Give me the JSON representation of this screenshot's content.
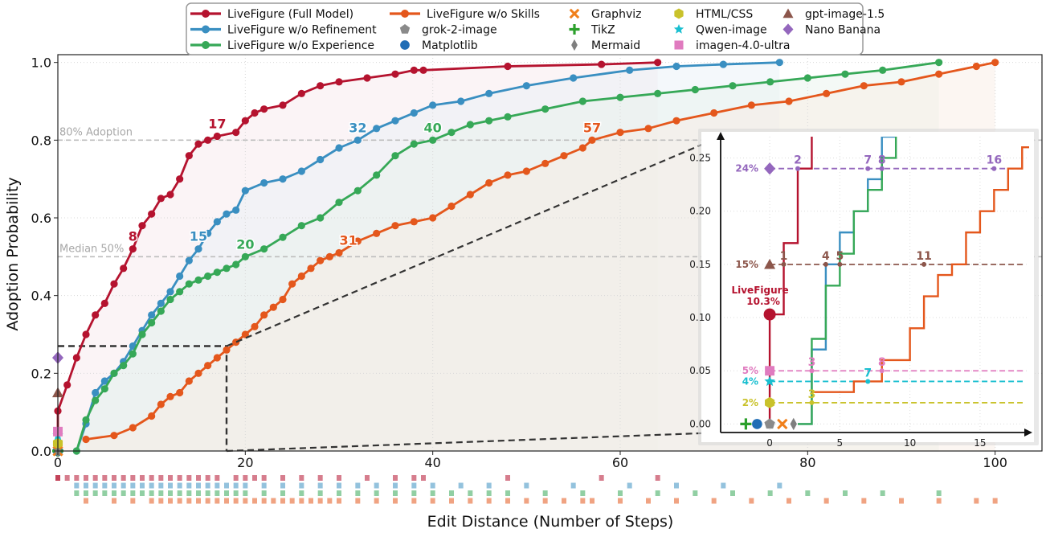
{
  "chart_data": {
    "type": "line",
    "xlabel": "Edit Distance (Number of Steps)",
    "ylabel": "Adoption Probability",
    "xlim": [
      0,
      105
    ],
    "ylim": [
      0,
      1.02
    ],
    "xticks": [
      "0",
      "20",
      "40",
      "60",
      "80",
      "100"
    ],
    "yticks": [
      "0.0",
      "0.2",
      "0.4",
      "0.6",
      "0.8",
      "1.0"
    ],
    "grid": true,
    "legend_position": "top-center",
    "reference_lines": [
      {
        "label": "80% Adoption",
        "y": 0.8
      },
      {
        "label": "Median 50%",
        "y": 0.5
      }
    ],
    "series": [
      {
        "name": "LiveFigure (Full Model)",
        "color": "#b5132f",
        "x": [
          0,
          0,
          1,
          2,
          3,
          4,
          5,
          6,
          7,
          8,
          9,
          10,
          11,
          12,
          13,
          14,
          15,
          16,
          17,
          19,
          20,
          21,
          22,
          24,
          26,
          28,
          30,
          33,
          36,
          38,
          39,
          48,
          58,
          64
        ],
        "y": [
          0.0,
          0.103,
          0.17,
          0.24,
          0.3,
          0.35,
          0.38,
          0.43,
          0.47,
          0.52,
          0.58,
          0.61,
          0.65,
          0.66,
          0.7,
          0.76,
          0.79,
          0.8,
          0.81,
          0.82,
          0.85,
          0.87,
          0.88,
          0.89,
          0.92,
          0.94,
          0.95,
          0.96,
          0.97,
          0.98,
          0.98,
          0.99,
          0.995,
          1.0
        ],
        "markers": "dense",
        "annotations": [
          {
            "x": 8,
            "text": "8"
          },
          {
            "x": 17,
            "text": "17"
          }
        ]
      },
      {
        "name": "LiveFigure w/o Refinement",
        "color": "#3a8fc1",
        "x": [
          2,
          3,
          4,
          5,
          6,
          7,
          8,
          9,
          10,
          11,
          12,
          13,
          14,
          15,
          16,
          17,
          18,
          19,
          20,
          22,
          24,
          26,
          28,
          30,
          32,
          34,
          36,
          38,
          40,
          43,
          46,
          50,
          55,
          61,
          66,
          71,
          77
        ],
        "y": [
          0.0,
          0.07,
          0.15,
          0.18,
          0.2,
          0.23,
          0.27,
          0.31,
          0.35,
          0.38,
          0.41,
          0.45,
          0.49,
          0.52,
          0.56,
          0.59,
          0.61,
          0.62,
          0.67,
          0.69,
          0.7,
          0.72,
          0.75,
          0.78,
          0.8,
          0.83,
          0.85,
          0.87,
          0.89,
          0.9,
          0.92,
          0.94,
          0.96,
          0.98,
          0.99,
          0.995,
          1.0
        ],
        "markers": "dense",
        "annotations": [
          {
            "x": 15,
            "text": "15"
          },
          {
            "x": 32,
            "text": "32"
          }
        ]
      },
      {
        "name": "LiveFigure w/o Experience",
        "color": "#36a857",
        "x": [
          2,
          3,
          4,
          5,
          6,
          7,
          8,
          9,
          10,
          11,
          12,
          13,
          14,
          15,
          16,
          17,
          18,
          19,
          20,
          22,
          24,
          26,
          28,
          30,
          32,
          34,
          36,
          38,
          40,
          42,
          44,
          46,
          48,
          52,
          56,
          60,
          64,
          68,
          72,
          76,
          80,
          84,
          88,
          94
        ],
        "y": [
          0.0,
          0.08,
          0.13,
          0.16,
          0.2,
          0.22,
          0.25,
          0.3,
          0.33,
          0.36,
          0.39,
          0.41,
          0.43,
          0.44,
          0.45,
          0.46,
          0.47,
          0.48,
          0.5,
          0.52,
          0.55,
          0.58,
          0.6,
          0.64,
          0.67,
          0.71,
          0.76,
          0.79,
          0.8,
          0.82,
          0.84,
          0.85,
          0.86,
          0.88,
          0.9,
          0.91,
          0.92,
          0.93,
          0.94,
          0.95,
          0.96,
          0.97,
          0.98,
          1.0
        ],
        "markers": "dense",
        "annotations": [
          {
            "x": 20,
            "text": "20"
          },
          {
            "x": 40,
            "text": "40"
          }
        ]
      },
      {
        "name": "LiveFigure w/o Skills",
        "color": "#e4571c",
        "x": [
          3,
          6,
          8,
          10,
          11,
          12,
          13,
          14,
          15,
          16,
          17,
          18,
          19,
          20,
          21,
          22,
          23,
          24,
          25,
          26,
          27,
          28,
          29,
          30,
          32,
          34,
          36,
          38,
          40,
          42,
          44,
          46,
          48,
          50,
          52,
          54,
          56,
          57,
          60,
          63,
          66,
          70,
          74,
          78,
          82,
          86,
          90,
          94,
          98,
          100
        ],
        "y": [
          0.03,
          0.04,
          0.06,
          0.09,
          0.12,
          0.14,
          0.15,
          0.18,
          0.2,
          0.22,
          0.24,
          0.26,
          0.28,
          0.3,
          0.32,
          0.35,
          0.37,
          0.39,
          0.43,
          0.45,
          0.47,
          0.49,
          0.5,
          0.51,
          0.54,
          0.56,
          0.58,
          0.59,
          0.6,
          0.63,
          0.66,
          0.69,
          0.71,
          0.72,
          0.74,
          0.76,
          0.78,
          0.8,
          0.82,
          0.83,
          0.85,
          0.87,
          0.89,
          0.9,
          0.92,
          0.94,
          0.95,
          0.97,
          0.99,
          1.0
        ],
        "markers": "dense",
        "annotations": [
          {
            "x": 31,
            "text": "31"
          },
          {
            "x": 57,
            "text": "57"
          }
        ]
      }
    ],
    "baselines": [
      {
        "name": "grok-2-image",
        "marker": "pentagon",
        "color": "#8a8a8a",
        "x": 0,
        "y": 0.0
      },
      {
        "name": "Matplotlib",
        "marker": "circle",
        "color": "#1f6db5",
        "x": 0,
        "y": 0.0
      },
      {
        "name": "Graphviz",
        "marker": "x",
        "color": "#f07f1a",
        "x": 0,
        "y": 0.0
      },
      {
        "name": "TikZ",
        "marker": "plus",
        "color": "#2ca02c",
        "x": 0,
        "y": 0.0
      },
      {
        "name": "Mermaid",
        "marker": "diamond-thin",
        "color": "#7f7f7f",
        "x": 0,
        "y": 0.0
      },
      {
        "name": "HTML/CSS",
        "marker": "hexagon",
        "color": "#c9c22b",
        "x": 0,
        "y": 0.02
      },
      {
        "name": "Qwen-image",
        "marker": "star",
        "color": "#19bfd0",
        "x": 0,
        "y": 0.04
      },
      {
        "name": "imagen-4.0-ultra",
        "marker": "square",
        "color": "#e07bbf",
        "x": 0,
        "y": 0.05
      },
      {
        "name": "gpt-image-1.5",
        "marker": "triangle",
        "color": "#8c564b",
        "x": 0,
        "y": 0.15
      },
      {
        "name": "Nano Banana",
        "marker": "diamond",
        "color": "#9467bd",
        "x": 0,
        "y": 0.24
      }
    ],
    "inset": {
      "xlim": [
        -3.5,
        18.5
      ],
      "ylim": [
        -0.008,
        0.27
      ],
      "xticks": [
        "0",
        "5",
        "10",
        "15"
      ],
      "yticks": [
        "0.00",
        "0.05",
        "0.10",
        "0.15",
        "0.20",
        "0.25"
      ],
      "hlines": [
        {
          "y": 0.24,
          "label": "24%",
          "color": "#9467bd"
        },
        {
          "y": 0.15,
          "label": "15%",
          "color": "#8c564b"
        },
        {
          "y": 0.05,
          "label": "5%",
          "color": "#e07bbf"
        },
        {
          "y": 0.04,
          "label": "4%",
          "color": "#19bfd0"
        },
        {
          "y": 0.02,
          "label": "2%",
          "color": "#c9c22b"
        }
      ],
      "callout": {
        "label": "LiveFigure",
        "value": "10.3%",
        "x": 0,
        "y": 0.103
      },
      "crossings": [
        {
          "x": 2,
          "y": 0.24,
          "text": "2",
          "color": "#9467bd"
        },
        {
          "x": 7,
          "y": 0.24,
          "text": "7",
          "color": "#9467bd"
        },
        {
          "x": 8,
          "y": 0.24,
          "text": "8",
          "color": "#9467bd"
        },
        {
          "x": 16,
          "y": 0.24,
          "text": "16",
          "color": "#9467bd"
        },
        {
          "x": 1,
          "y": 0.15,
          "text": "1",
          "color": "#8c564b"
        },
        {
          "x": 4,
          "y": 0.15,
          "text": "4",
          "color": "#8c564b"
        },
        {
          "x": 5,
          "y": 0.15,
          "text": "5",
          "color": "#8c564b"
        },
        {
          "x": 11,
          "y": 0.15,
          "text": "11",
          "color": "#8c564b"
        },
        {
          "x": 3,
          "y": 0.05,
          "text": "3",
          "color": "#e07bbf"
        },
        {
          "x": 8,
          "y": 0.05,
          "text": "8",
          "color": "#e07bbf"
        },
        {
          "x": 7,
          "y": 0.04,
          "text": "7",
          "color": "#19bfd0"
        },
        {
          "x": 3,
          "y": 0.02,
          "text": "3",
          "color": "#c9c22b"
        }
      ]
    }
  }
}
